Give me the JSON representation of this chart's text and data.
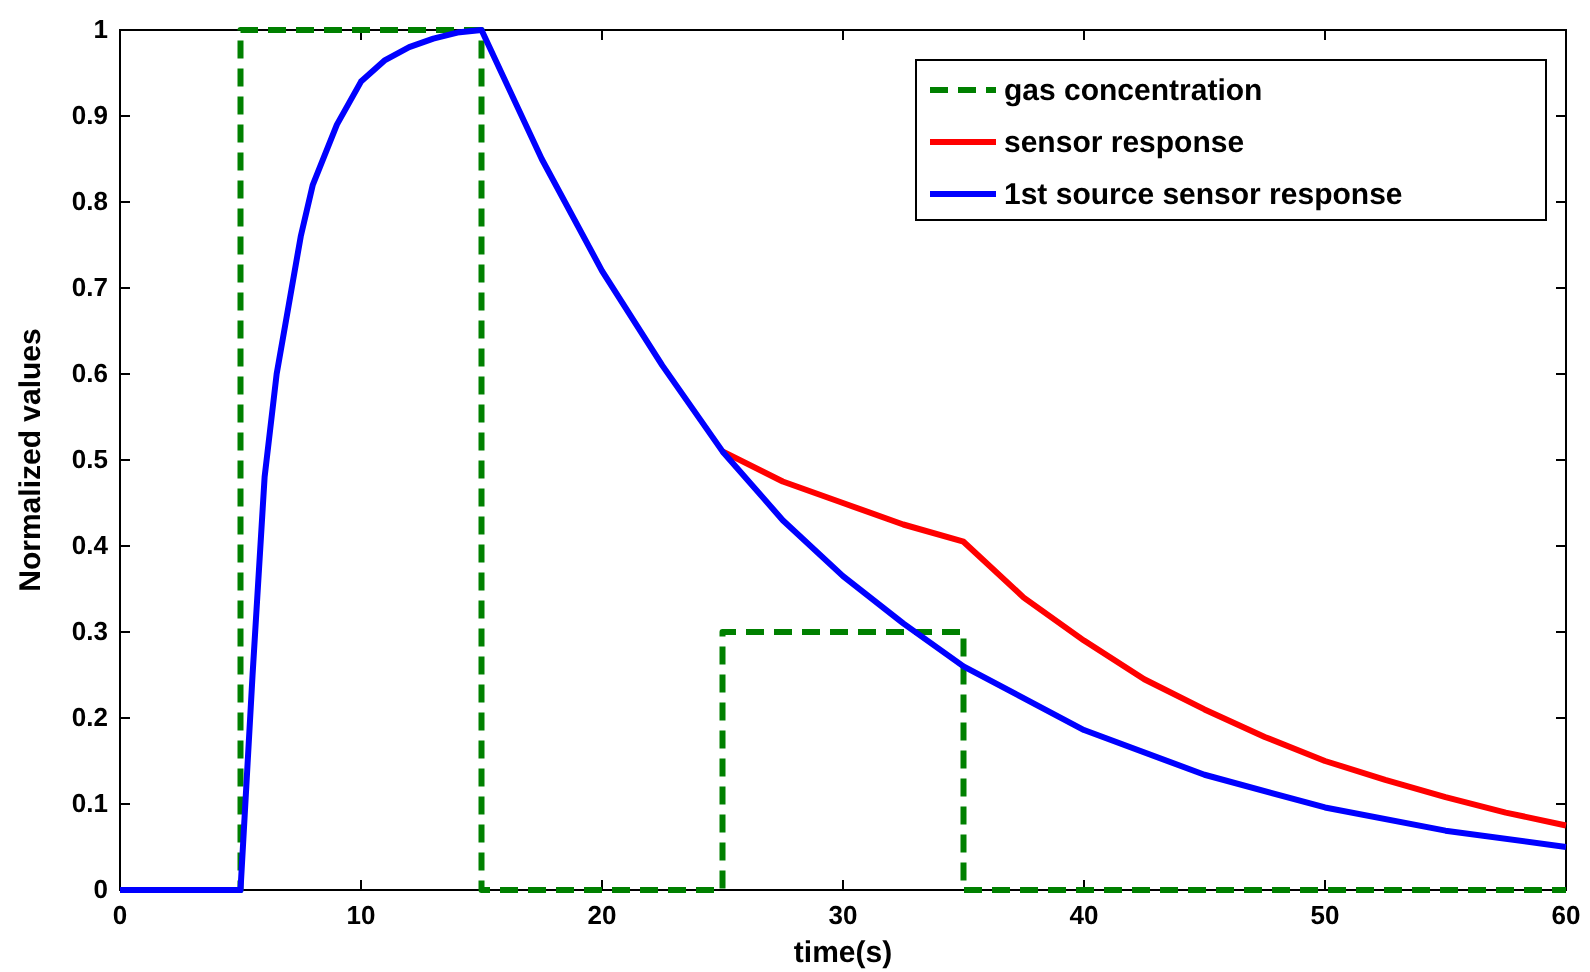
{
  "chart_data": {
    "type": "line",
    "xlabel": "time(s)",
    "ylabel": "Normalized values",
    "xlim": [
      0,
      60
    ],
    "ylim": [
      0,
      1
    ],
    "xticks": [
      0,
      10,
      20,
      30,
      40,
      50,
      60
    ],
    "yticks": [
      0,
      0.1,
      0.2,
      0.3,
      0.4,
      0.5,
      0.6,
      0.7,
      0.8,
      0.9,
      1
    ],
    "grid": false,
    "legend": "top right",
    "marker": "none",
    "series": [
      {
        "name": "gas concentration",
        "color": "#008000",
        "line_style": "dashed",
        "x": [
          0,
          5,
          5,
          15,
          15,
          25,
          25,
          35,
          35,
          60
        ],
        "values": [
          0,
          0,
          1,
          1,
          0,
          0,
          0.3,
          0.3,
          0,
          0
        ]
      },
      {
        "name": "sensor response",
        "color": "#ff0000",
        "line_style": "solid",
        "x": [
          25,
          27.5,
          30,
          32.5,
          35,
          37.5,
          40,
          42.5,
          45,
          47.5,
          50,
          52.5,
          55,
          57.5,
          60
        ],
        "values": [
          0.51,
          0.475,
          0.45,
          0.425,
          0.405,
          0.34,
          0.29,
          0.245,
          0.21,
          0.178,
          0.15,
          0.128,
          0.108,
          0.09,
          0.075
        ]
      },
      {
        "name": "1st source sensor response",
        "color": "#0000ff",
        "line_style": "solid",
        "x": [
          0,
          5,
          5.5,
          6,
          6.5,
          7,
          7.5,
          8,
          9,
          10,
          11,
          12,
          13,
          14,
          15,
          17.5,
          20,
          22.5,
          25,
          27.5,
          30,
          32.5,
          35,
          40,
          45,
          50,
          55,
          60
        ],
        "values": [
          0,
          0,
          0.25,
          0.48,
          0.6,
          0.68,
          0.76,
          0.82,
          0.89,
          0.94,
          0.965,
          0.98,
          0.99,
          0.997,
          1,
          0.85,
          0.72,
          0.61,
          0.51,
          0.43,
          0.365,
          0.31,
          0.26,
          0.186,
          0.134,
          0.096,
          0.069,
          0.05
        ]
      }
    ]
  }
}
